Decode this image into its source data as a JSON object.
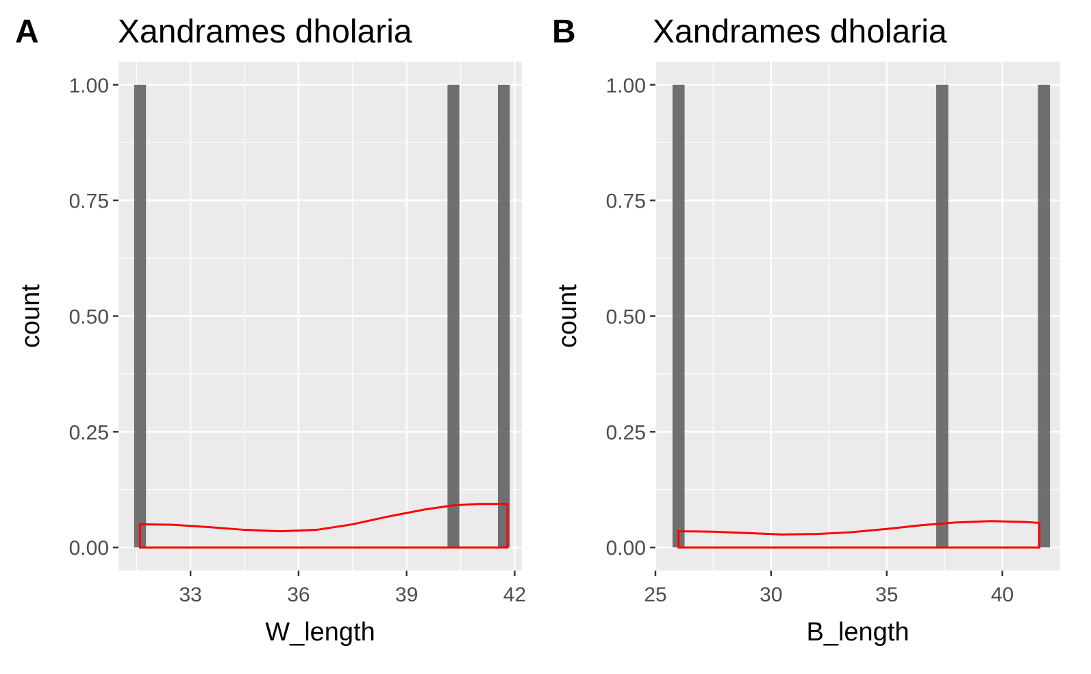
{
  "chart_data": [
    {
      "type": "bar",
      "panel_tag": "A",
      "title": "Xandrames dholaria",
      "xlabel": "W_length",
      "ylabel": "count",
      "xlim": [
        31.0,
        42.2
      ],
      "ylim": [
        -0.05,
        1.05
      ],
      "xticks": [
        33,
        36,
        39,
        42
      ],
      "xtick_labels": [
        "33",
        "36",
        "39",
        "42"
      ],
      "yticks": [
        0,
        0.25,
        0.5,
        0.75,
        1.0
      ],
      "ytick_labels": [
        "0.00",
        "0.25",
        "0.50",
        "0.75",
        "1.00"
      ],
      "bar_width": 0.33,
      "bars": [
        {
          "x": 31.6,
          "count": 1
        },
        {
          "x": 40.3,
          "count": 1
        },
        {
          "x": 41.7,
          "count": 1
        }
      ],
      "density_color": "#ff0000",
      "bar_color": "#595959",
      "density": {
        "x": [
          31.6,
          32.5,
          33.5,
          34.5,
          35.5,
          36.5,
          37.5,
          38.5,
          39.5,
          40.3,
          41.0,
          41.7,
          41.8
        ],
        "y": [
          0.05,
          0.049,
          0.044,
          0.038,
          0.035,
          0.038,
          0.05,
          0.067,
          0.082,
          0.091,
          0.094,
          0.094,
          0.094
        ]
      }
    },
    {
      "type": "bar",
      "panel_tag": "B",
      "title": "Xandrames dholaria",
      "xlabel": "B_length",
      "ylabel": "count",
      "xlim": [
        25.0,
        42.5
      ],
      "ylim": [
        -0.05,
        1.05
      ],
      "xticks": [
        25,
        30,
        35,
        40
      ],
      "xtick_labels": [
        "25",
        "30",
        "35",
        "40"
      ],
      "yticks": [
        0,
        0.25,
        0.5,
        0.75,
        1.0
      ],
      "ytick_labels": [
        "0.00",
        "0.25",
        "0.50",
        "0.75",
        "1.00"
      ],
      "bar_width": 0.52,
      "bars": [
        {
          "x": 26.0,
          "count": 1
        },
        {
          "x": 37.4,
          "count": 1
        },
        {
          "x": 41.8,
          "count": 1
        }
      ],
      "density_color": "#ff0000",
      "bar_color": "#595959",
      "density": {
        "x": [
          26.0,
          27.5,
          29.0,
          30.5,
          32.0,
          33.5,
          35.0,
          36.5,
          38.0,
          39.5,
          41.0,
          41.6
        ],
        "y": [
          0.035,
          0.034,
          0.031,
          0.028,
          0.029,
          0.033,
          0.04,
          0.048,
          0.054,
          0.057,
          0.055,
          0.053
        ]
      }
    }
  ]
}
